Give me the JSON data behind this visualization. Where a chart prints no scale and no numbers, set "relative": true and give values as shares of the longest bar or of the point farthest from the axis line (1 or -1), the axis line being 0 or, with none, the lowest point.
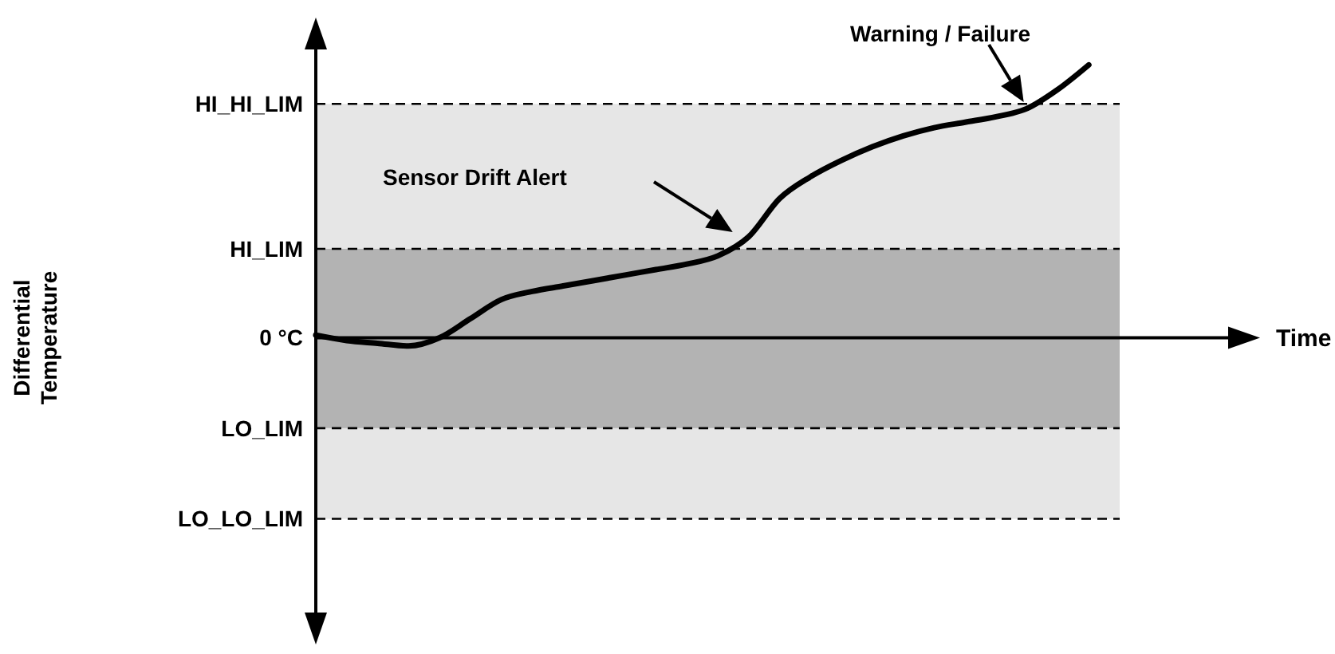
{
  "chart_data": {
    "type": "line",
    "relative": true,
    "categories": [
      null,
      null,
      null,
      null,
      null,
      null,
      null,
      null,
      null,
      null,
      null,
      null,
      null,
      null,
      null,
      null,
      null,
      null,
      null,
      null,
      null,
      null,
      null,
      null,
      null,
      null,
      null
    ],
    "series": [
      {
        "color": "#000000",
        "values": [
          0.01,
          -0.01,
          -0.02,
          -0.03,
          0,
          0.07,
          0.14,
          0.17,
          0.19,
          0.21,
          0.23,
          0.25,
          0.27,
          0.3,
          0.37,
          0.51,
          0.59,
          0.65,
          0.7,
          0.74,
          0.77,
          0.79,
          0.81,
          0.84,
          0.91,
          1,
          null
        ]
      }
    ],
    "bands": [
      {
        "axis": "y",
        "from": -0.663,
        "to": 0.857,
        "color": "#e6e6e6"
      },
      {
        "axis": "y",
        "from": -0.331,
        "to": 0.326,
        "color": "#b3b3b3"
      }
    ],
    "ref_lines": [
      {
        "axis": "y",
        "value": 0.857,
        "label": "HI_HI_LIM",
        "line_style": "dashed"
      },
      {
        "axis": "y",
        "value": 0.326,
        "label": "HI_LIM",
        "line_style": "dashed"
      },
      {
        "axis": "y",
        "value": 0,
        "label": "0 °C",
        "line_style": "solid"
      },
      {
        "axis": "y",
        "value": -0.331,
        "label": "LO_LIM",
        "line_style": "dashed"
      },
      {
        "axis": "y",
        "value": -0.663,
        "label": "LO_LO_LIM",
        "line_style": "dashed"
      }
    ],
    "annotations": [
      "Sensor Drift Alert",
      "Warning / Failure",
      "Time",
      "Differential Temperature"
    ],
    "marker": "none",
    "line_style": "solid"
  }
}
